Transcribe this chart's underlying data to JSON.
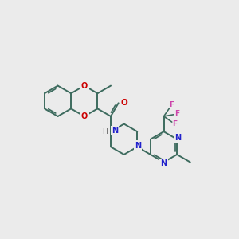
{
  "bg": "#EBEBEB",
  "bc": "#3d6b5e",
  "nc": "#2222CC",
  "oc": "#CC0000",
  "fc": "#CC44AA",
  "bw": 1.4,
  "figsize": [
    3.0,
    3.0
  ],
  "dpi": 100,
  "xlim": [
    -2.8,
    3.5
  ],
  "ylim": [
    -2.5,
    2.2
  ]
}
